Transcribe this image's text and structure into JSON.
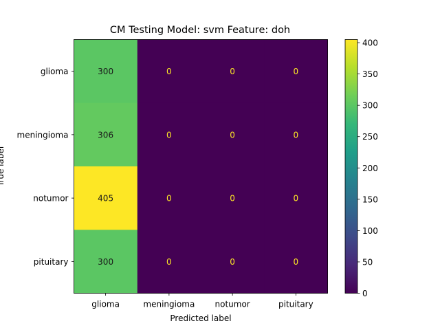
{
  "chart_data": {
    "type": "heatmap",
    "title": "CM Testing Model: svm Feature: doh",
    "xlabel": "Predicted label",
    "ylabel": "True label",
    "x_categories": [
      "glioma",
      "meningioma",
      "notumor",
      "pituitary"
    ],
    "y_categories": [
      "glioma",
      "meningioma",
      "notumor",
      "pituitary"
    ],
    "values": [
      [
        300,
        0,
        0,
        0
      ],
      [
        306,
        0,
        0,
        0
      ],
      [
        405,
        0,
        0,
        0
      ],
      [
        300,
        0,
        0,
        0
      ]
    ],
    "colormap": "viridis",
    "vmin": 0,
    "vmax": 405,
    "colorbar_ticks": [
      0,
      50,
      100,
      150,
      200,
      250,
      300,
      350,
      400
    ],
    "text_color_dark": "#1a1a1a",
    "text_color_light": "#fde725"
  }
}
